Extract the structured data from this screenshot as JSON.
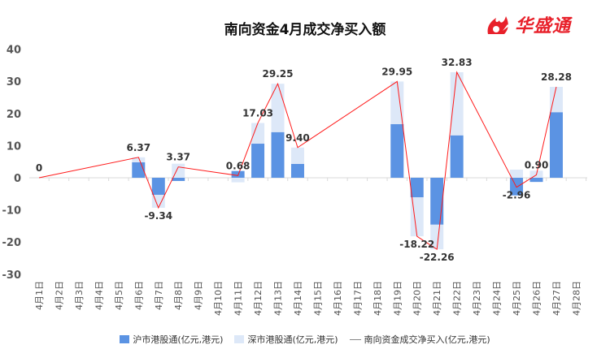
{
  "header": {
    "title": "南向资金4月成交净买入额",
    "logo_text": "华盛通"
  },
  "colors": {
    "sh": "#5b93e3",
    "sz": "#dde8f8",
    "line": "#ff1a1a",
    "brand": "#e8202a"
  },
  "chart_data": {
    "type": "bar",
    "title": "南向资金4月成交净买入额",
    "categories": [
      "4月1日",
      "4月2日",
      "4月3日",
      "4月4日",
      "4月5日",
      "4月6日",
      "4月7日",
      "4月8日",
      "4月9日",
      "4月10日",
      "4月11日",
      "4月12日",
      "4月13日",
      "4月14日",
      "4月15日",
      "4月16日",
      "4月17日",
      "4月18日",
      "4月19日",
      "4月20日",
      "4月21日",
      "4月22日",
      "4月23日",
      "4月24日",
      "4月25日",
      "4月26日",
      "4月27日",
      "4月28日"
    ],
    "ylim": [
      -30,
      40
    ],
    "yticks": [
      40,
      30,
      20,
      10,
      0,
      -10,
      -20,
      -30
    ],
    "stacked": true,
    "series": [
      {
        "name": "沪市港股通(亿元,港元)",
        "type": "bar",
        "values": [
          0,
          null,
          null,
          null,
          null,
          4.8,
          -5.3,
          -1.0,
          null,
          null,
          2.1,
          10.6,
          14.2,
          4.3,
          null,
          null,
          null,
          null,
          16.7,
          -6.1,
          -14.6,
          13.2,
          null,
          null,
          -5.5,
          -1.3,
          20.4,
          null
        ]
      },
      {
        "name": "深市港股通(亿元,港元)",
        "type": "bar",
        "values": [
          0,
          null,
          null,
          null,
          null,
          1.57,
          -4.04,
          4.37,
          null,
          null,
          -1.42,
          6.43,
          15.05,
          5.1,
          null,
          null,
          null,
          null,
          13.25,
          -12.12,
          -7.66,
          19.63,
          null,
          null,
          2.54,
          2.2,
          7.88,
          null
        ]
      },
      {
        "name": "南向资金成交净买入(亿元,港元)",
        "type": "line",
        "values": [
          0,
          null,
          null,
          null,
          null,
          6.37,
          -9.34,
          3.37,
          null,
          null,
          0.68,
          17.03,
          29.25,
          9.4,
          null,
          null,
          null,
          null,
          29.95,
          -18.22,
          -22.26,
          32.83,
          null,
          null,
          -2.96,
          0.9,
          28.28,
          null
        ],
        "labels": [
          "0",
          null,
          null,
          null,
          null,
          "6.37",
          "-9.34",
          "3.37",
          null,
          null,
          "0.68",
          "17.03",
          "29.25",
          "9.40",
          null,
          null,
          null,
          null,
          "29.95",
          "-18.22",
          "-22.26",
          "32.83",
          null,
          null,
          "-2.96",
          "0.90",
          "28.28",
          null
        ]
      }
    ],
    "legend_position": "bottom",
    "grid": false
  }
}
